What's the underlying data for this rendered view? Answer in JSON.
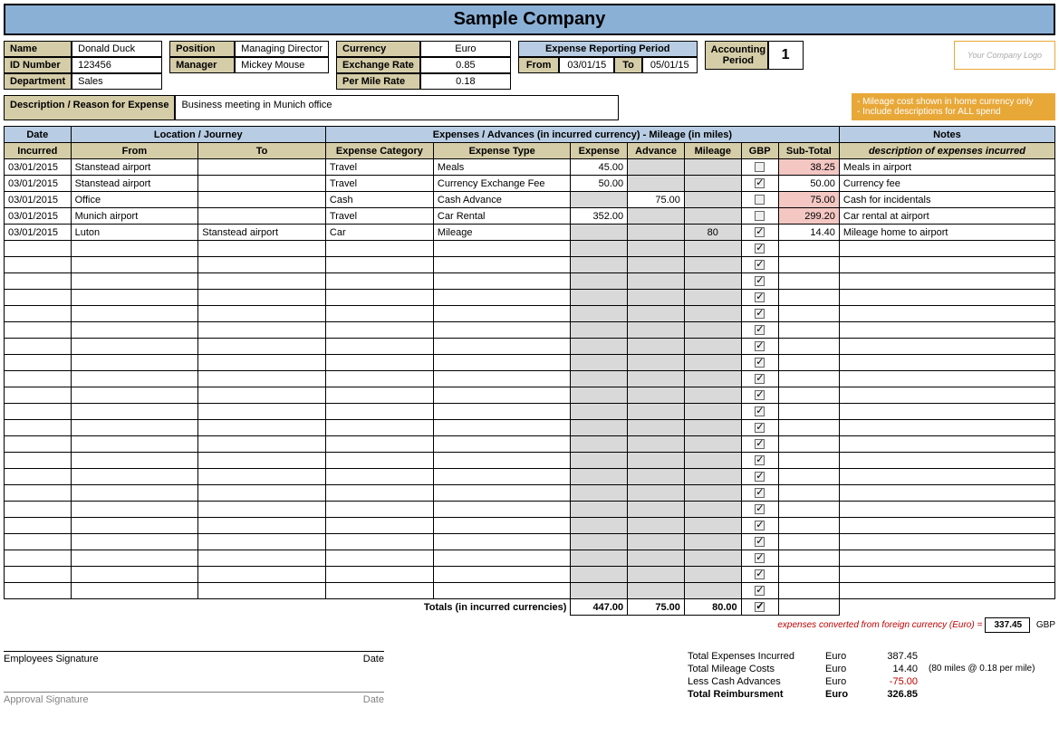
{
  "title": "Sample Company",
  "employee": {
    "name_label": "Name",
    "name": "Donald Duck",
    "id_label": "ID Number",
    "id": "123456",
    "dept_label": "Department",
    "dept": "Sales"
  },
  "position": {
    "pos_label": "Position",
    "pos": "Managing Director",
    "mgr_label": "Manager",
    "mgr": "Mickey Mouse"
  },
  "currency": {
    "cur_label": "Currency",
    "cur": "Euro",
    "rate_label": "Exchange Rate",
    "rate": "0.85",
    "mile_label": "Per Mile Rate",
    "mile": "0.18"
  },
  "period": {
    "title": "Expense Reporting Period",
    "from_label": "From",
    "from": "03/01/15",
    "to_label": "To",
    "to": "05/01/15"
  },
  "acct": {
    "label": "Accounting Period",
    "value": "1"
  },
  "logo": "Your Company Logo",
  "notes_box": "- Mileage cost shown in home currency only\n- Include descriptions for ALL spend",
  "desc": {
    "label": "Description / Reason for Expense",
    "value": "Business meeting in Munich office"
  },
  "columns": {
    "date_group": "Date",
    "loc_group": "Location / Journey",
    "exp_group": "Expenses / Advances (in incurred currency)    -    Mileage (in miles)",
    "notes_group": "Notes",
    "incurred": "Incurred",
    "from": "From",
    "to": "To",
    "cat": "Expense Category",
    "type": "Expense Type",
    "expense": "Expense",
    "advance": "Advance",
    "mileage": "Mileage",
    "gbp": "GBP",
    "subtotal": "Sub-Total",
    "notes_sub": "description of expenses incurred"
  },
  "rows": [
    {
      "date": "03/01/2015",
      "from": "Stanstead airport",
      "to": "",
      "cat": "Travel",
      "type": "Meals",
      "expense": "45.00",
      "advance": "",
      "mileage": "",
      "gbp": false,
      "sub": "38.25",
      "sub_pink": true,
      "note": "Meals in airport"
    },
    {
      "date": "03/01/2015",
      "from": "Stanstead airport",
      "to": "",
      "cat": "Travel",
      "type": "Currency Exchange Fee",
      "expense": "50.00",
      "advance": "",
      "mileage": "",
      "gbp": true,
      "sub": "50.00",
      "sub_pink": false,
      "note": "Currency fee"
    },
    {
      "date": "03/01/2015",
      "from": "Office",
      "to": "",
      "cat": "Cash",
      "type": "Cash Advance",
      "expense": "",
      "advance": "75.00",
      "mileage": "",
      "gbp": false,
      "sub": "75.00",
      "sub_pink": true,
      "note": "Cash for incidentals",
      "exp_gray": true
    },
    {
      "date": "03/01/2015",
      "from": "Munich airport",
      "to": "",
      "cat": "Travel",
      "type": "Car Rental",
      "expense": "352.00",
      "advance": "",
      "mileage": "",
      "gbp": false,
      "sub": "299.20",
      "sub_pink": true,
      "note": "Car rental at airport"
    },
    {
      "date": "03/01/2015",
      "from": "Luton",
      "to": "Stanstead airport",
      "cat": "Car",
      "type": "Mileage",
      "expense": "",
      "advance": "",
      "mileage": "80",
      "gbp": true,
      "sub": "14.40",
      "sub_pink": false,
      "note": "Mileage home to airport",
      "exp_gray": true,
      "adv_gray": true
    }
  ],
  "empty_rows": 22,
  "totals": {
    "label": "Totals (in incurred currencies)",
    "expense": "447.00",
    "advance": "75.00",
    "mileage": "80.00"
  },
  "converted": {
    "label": "expenses converted from foreign currency (Euro) =",
    "value": "337.45",
    "unit": "GBP"
  },
  "signatures": {
    "emp": "Employees Signature",
    "date": "Date",
    "appr": "Approval Signature"
  },
  "summary": [
    {
      "label": "Total Expenses Incurred",
      "cur": "Euro",
      "val": "387.45",
      "extra": ""
    },
    {
      "label": "Total Mileage Costs",
      "cur": "Euro",
      "val": "14.40",
      "extra": "(80 miles @ 0.18 per mile)"
    },
    {
      "label": "Less Cash Advances",
      "cur": "Euro",
      "val": "-75.00",
      "extra": "",
      "red": true
    },
    {
      "label": "Total Reimbursment",
      "cur": "Euro",
      "val": "326.85",
      "extra": "",
      "bold": true
    }
  ]
}
